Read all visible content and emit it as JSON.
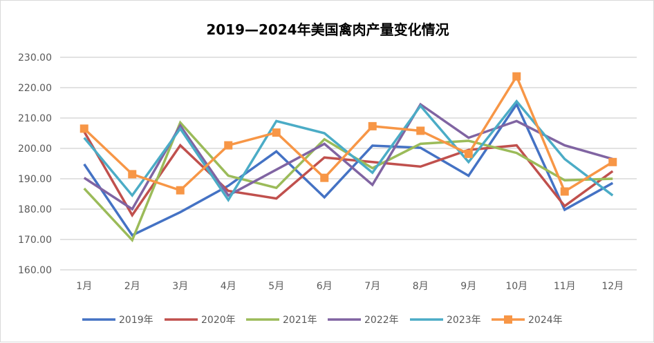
{
  "chart_data": {
    "type": "line",
    "title": "2019—2024年美国禽肉产量变化情况",
    "xlabel": "",
    "ylabel": "",
    "categories": [
      "1月",
      "2月",
      "3月",
      "4月",
      "5月",
      "6月",
      "7月",
      "8月",
      "9月",
      "10月",
      "11月",
      "12月"
    ],
    "ylim": [
      160,
      230
    ],
    "yticks": [
      "160.00",
      "170.00",
      "180.00",
      "190.00",
      "200.00",
      "210.00",
      "220.00",
      "230.00"
    ],
    "grid": true,
    "legend": "bottom",
    "series": [
      {
        "name": "2019年",
        "color": "#4472c4",
        "marker": false,
        "values": [
          194.8,
          171.4,
          179.0,
          187.7,
          199.0,
          183.9,
          200.9,
          200.2,
          191.0,
          214.5,
          179.8,
          188.6
        ]
      },
      {
        "name": "2020年",
        "color": "#c0504d",
        "marker": false,
        "values": [
          205.5,
          178.0,
          201.0,
          186.0,
          183.5,
          197.0,
          195.5,
          194.0,
          199.5,
          201.0,
          181.0,
          192.5
        ]
      },
      {
        "name": "2021年",
        "color": "#9bbb59",
        "marker": false,
        "values": [
          186.8,
          169.8,
          208.5,
          191.0,
          187.0,
          203.0,
          193.5,
          201.5,
          202.5,
          198.5,
          189.5,
          190.0
        ]
      },
      {
        "name": "2022年",
        "color": "#8064a2",
        "marker": false,
        "values": [
          190.3,
          180.0,
          207.5,
          184.5,
          193.0,
          201.5,
          188.0,
          214.5,
          203.5,
          209.0,
          201.0,
          196.5
        ]
      },
      {
        "name": "2023年",
        "color": "#4bacc6",
        "marker": false,
        "values": [
          203.5,
          184.5,
          206.5,
          183.0,
          209.0,
          205.0,
          192.0,
          214.0,
          195.5,
          215.5,
          196.5,
          184.5
        ]
      },
      {
        "name": "2024年",
        "color": "#f79646",
        "marker": true,
        "values": [
          206.5,
          191.5,
          186.2,
          201.0,
          205.2,
          190.3,
          207.3,
          205.8,
          198.2,
          223.7,
          185.8,
          195.5
        ]
      }
    ]
  }
}
